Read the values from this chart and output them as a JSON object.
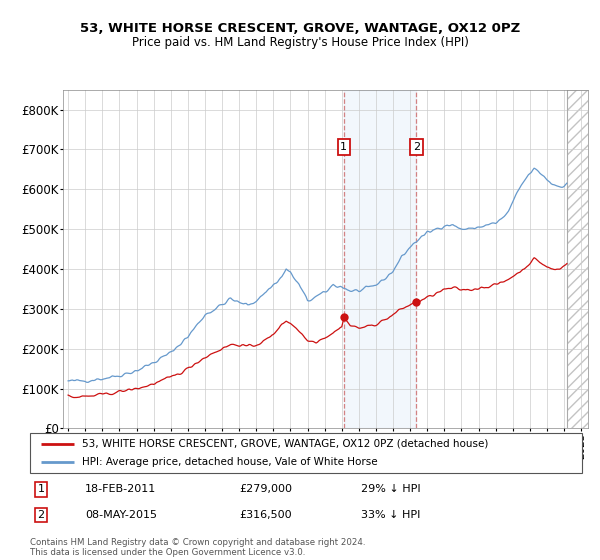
{
  "title": "53, WHITE HORSE CRESCENT, GROVE, WANTAGE, OX12 0PZ",
  "subtitle": "Price paid vs. HM Land Registry's House Price Index (HPI)",
  "ylim": [
    0,
    850000
  ],
  "yticks": [
    0,
    100000,
    200000,
    300000,
    400000,
    500000,
    600000,
    700000,
    800000
  ],
  "ytick_labels": [
    "£0",
    "£100K",
    "£200K",
    "£300K",
    "£400K",
    "£500K",
    "£600K",
    "£700K",
    "£800K"
  ],
  "hpi_color": "#6699cc",
  "price_color": "#cc1111",
  "marker1_x": 2011.12,
  "marker1_y": 279000,
  "marker2_x": 2015.36,
  "marker2_y": 316500,
  "marker1_date": "18-FEB-2011",
  "marker1_price": "£279,000",
  "marker1_hpi": "29% ↓ HPI",
  "marker2_date": "08-MAY-2015",
  "marker2_price": "£316,500",
  "marker2_hpi": "33% ↓ HPI",
  "legend_line1": "53, WHITE HORSE CRESCENT, GROVE, WANTAGE, OX12 0PZ (detached house)",
  "legend_line2": "HPI: Average price, detached house, Vale of White Horse",
  "footnote": "Contains HM Land Registry data © Crown copyright and database right 2024.\nThis data is licensed under the Open Government Licence v3.0.",
  "shaded_region": [
    2011.12,
    2015.36
  ],
  "hatch_region_start": 2024.17,
  "hatch_region_end": 2025.5,
  "xlim_left": 1994.7,
  "xlim_right": 2025.4
}
